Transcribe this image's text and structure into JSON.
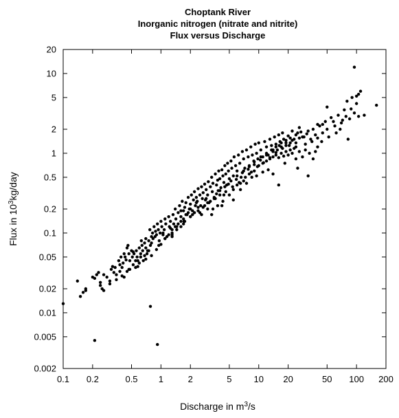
{
  "chart_data": {
    "type": "scatter",
    "title": [
      "Choptank River",
      "Inorganic nitrogen (nitrate and nitrite)",
      "Flux versus Discharge"
    ],
    "xlabel": {
      "prefix": "Discharge in m",
      "sup": "3",
      "suffix": "/s"
    },
    "ylabel": {
      "prefix": "Flux in 10",
      "sup": "3",
      "suffix": "kg/day"
    },
    "xscale": "log",
    "yscale": "log",
    "xlim": [
      0.1,
      200
    ],
    "ylim": [
      0.002,
      20
    ],
    "xticks": [
      0.1,
      0.2,
      0.5,
      1,
      2,
      5,
      10,
      20,
      50,
      100,
      200
    ],
    "xtick_labels": [
      "0.1",
      "0.2",
      "0.5",
      "1",
      "2",
      "5",
      "10",
      "20",
      "50",
      "100",
      "200"
    ],
    "yticks": [
      0.002,
      0.005,
      0.01,
      0.02,
      0.05,
      0.1,
      0.2,
      0.5,
      1,
      2,
      5,
      10,
      20
    ],
    "ytick_labels": [
      "0.002",
      "0.005",
      "0.01",
      "0.02",
      "0.05",
      "0.1",
      "0.2",
      "0.5",
      "1",
      "2",
      "5",
      "10",
      "20"
    ],
    "grid": false,
    "marker_color": "#000000",
    "points": [
      [
        0.1,
        0.013
      ],
      [
        0.14,
        0.025
      ],
      [
        0.15,
        0.016
      ],
      [
        0.16,
        0.018
      ],
      [
        0.17,
        0.02
      ],
      [
        0.17,
        0.019
      ],
      [
        0.2,
        0.028
      ],
      [
        0.21,
        0.027
      ],
      [
        0.22,
        0.03
      ],
      [
        0.23,
        0.032
      ],
      [
        0.24,
        0.024
      ],
      [
        0.24,
        0.022
      ],
      [
        0.25,
        0.02
      ],
      [
        0.26,
        0.03
      ],
      [
        0.28,
        0.028
      ],
      [
        0.3,
        0.025
      ],
      [
        0.31,
        0.035
      ],
      [
        0.32,
        0.038
      ],
      [
        0.33,
        0.032
      ],
      [
        0.34,
        0.037
      ],
      [
        0.35,
        0.03
      ],
      [
        0.37,
        0.045
      ],
      [
        0.38,
        0.04
      ],
      [
        0.38,
        0.033
      ],
      [
        0.39,
        0.05
      ],
      [
        0.4,
        0.037
      ],
      [
        0.41,
        0.042
      ],
      [
        0.42,
        0.055
      ],
      [
        0.43,
        0.05
      ],
      [
        0.44,
        0.046
      ],
      [
        0.45,
        0.065
      ],
      [
        0.46,
        0.07
      ],
      [
        0.47,
        0.055
      ],
      [
        0.48,
        0.045
      ],
      [
        0.48,
        0.035
      ],
      [
        0.5,
        0.06
      ],
      [
        0.51,
        0.05
      ],
      [
        0.52,
        0.04
      ],
      [
        0.53,
        0.055
      ],
      [
        0.55,
        0.045
      ],
      [
        0.56,
        0.06
      ],
      [
        0.57,
        0.05
      ],
      [
        0.58,
        0.038
      ],
      [
        0.6,
        0.065
      ],
      [
        0.62,
        0.055
      ],
      [
        0.63,
        0.08
      ],
      [
        0.64,
        0.07
      ],
      [
        0.65,
        0.06
      ],
      [
        0.66,
        0.045
      ],
      [
        0.68,
        0.075
      ],
      [
        0.7,
        0.085
      ],
      [
        0.7,
        0.065
      ],
      [
        0.72,
        0.055
      ],
      [
        0.73,
        0.06
      ],
      [
        0.75,
        0.08
      ],
      [
        0.77,
        0.11
      ],
      [
        0.78,
        0.07
      ],
      [
        0.8,
        0.09
      ],
      [
        0.82,
        0.1
      ],
      [
        0.83,
        0.085
      ],
      [
        0.85,
        0.12
      ],
      [
        0.87,
        0.09
      ],
      [
        0.88,
        0.105
      ],
      [
        0.9,
        0.095
      ],
      [
        0.92,
        0.13
      ],
      [
        0.94,
        0.11
      ],
      [
        0.96,
        0.08
      ],
      [
        0.98,
        0.1
      ],
      [
        1.0,
        0.14
      ],
      [
        1.02,
        0.12
      ],
      [
        1.05,
        0.095
      ],
      [
        1.08,
        0.11
      ],
      [
        1.1,
        0.15
      ],
      [
        1.12,
        0.13
      ],
      [
        1.15,
        0.09
      ],
      [
        1.2,
        0.16
      ],
      [
        1.22,
        0.12
      ],
      [
        1.25,
        0.14
      ],
      [
        1.3,
        0.11
      ],
      [
        1.33,
        0.17
      ],
      [
        1.35,
        0.13
      ],
      [
        1.4,
        0.2
      ],
      [
        1.42,
        0.15
      ],
      [
        1.45,
        0.12
      ],
      [
        1.5,
        0.18
      ],
      [
        1.55,
        0.22
      ],
      [
        1.6,
        0.16
      ],
      [
        1.65,
        0.25
      ],
      [
        1.7,
        0.19
      ],
      [
        1.72,
        0.14
      ],
      [
        1.75,
        0.21
      ],
      [
        1.8,
        0.24
      ],
      [
        1.85,
        0.17
      ],
      [
        1.9,
        0.28
      ],
      [
        1.95,
        0.2
      ],
      [
        2.0,
        0.23
      ],
      [
        2.05,
        0.3
      ],
      [
        2.1,
        0.19
      ],
      [
        2.15,
        0.26
      ],
      [
        2.2,
        0.33
      ],
      [
        2.25,
        0.22
      ],
      [
        2.3,
        0.28
      ],
      [
        2.35,
        0.25
      ],
      [
        2.4,
        0.36
      ],
      [
        2.5,
        0.3
      ],
      [
        2.55,
        0.22
      ],
      [
        2.6,
        0.38
      ],
      [
        2.65,
        0.27
      ],
      [
        2.7,
        0.32
      ],
      [
        2.8,
        0.41
      ],
      [
        2.85,
        0.26
      ],
      [
        2.9,
        0.35
      ],
      [
        3.0,
        0.3
      ],
      [
        3.05,
        0.44
      ],
      [
        3.1,
        0.24
      ],
      [
        3.2,
        0.38
      ],
      [
        3.3,
        0.5
      ],
      [
        3.35,
        0.33
      ],
      [
        3.4,
        0.42
      ],
      [
        3.5,
        0.28
      ],
      [
        3.6,
        0.55
      ],
      [
        3.7,
        0.4
      ],
      [
        3.8,
        0.46
      ],
      [
        3.85,
        0.34
      ],
      [
        3.9,
        0.6
      ],
      [
        4.0,
        0.48
      ],
      [
        4.1,
        0.37
      ],
      [
        4.2,
        0.62
      ],
      [
        4.3,
        0.52
      ],
      [
        4.4,
        0.43
      ],
      [
        4.5,
        0.7
      ],
      [
        4.6,
        0.55
      ],
      [
        4.7,
        0.4
      ],
      [
        4.8,
        0.75
      ],
      [
        4.9,
        0.6
      ],
      [
        5.0,
        0.48
      ],
      [
        5.2,
        0.8
      ],
      [
        5.3,
        0.65
      ],
      [
        5.5,
        0.52
      ],
      [
        5.6,
        0.9
      ],
      [
        5.8,
        0.7
      ],
      [
        6.0,
        0.6
      ],
      [
        6.2,
        0.95
      ],
      [
        6.4,
        0.75
      ],
      [
        6.6,
        0.5
      ],
      [
        6.8,
        1.05
      ],
      [
        7.0,
        0.85
      ],
      [
        7.2,
        0.65
      ],
      [
        7.5,
        1.1
      ],
      [
        7.8,
        0.9
      ],
      [
        8.0,
        0.7
      ],
      [
        8.3,
        1.2
      ],
      [
        8.6,
        0.95
      ],
      [
        8.9,
        0.8
      ],
      [
        9.2,
        1.3
      ],
      [
        9.5,
        1.0
      ],
      [
        9.8,
        0.85
      ],
      [
        10.0,
        1.35
      ],
      [
        10.5,
        1.1
      ],
      [
        11.0,
        0.9
      ],
      [
        11.5,
        1.4
      ],
      [
        12.0,
        1.2
      ],
      [
        12.5,
        0.95
      ],
      [
        13.0,
        1.5
      ],
      [
        13.5,
        1.25
      ],
      [
        14.0,
        1.05
      ],
      [
        14.5,
        1.6
      ],
      [
        15.0,
        1.3
      ],
      [
        15.5,
        1.1
      ],
      [
        16.0,
        1.7
      ],
      [
        16.5,
        1.4
      ],
      [
        17.0,
        1.2
      ],
      [
        17.5,
        1.8
      ],
      [
        18.0,
        1.5
      ],
      [
        19.0,
        1.25
      ],
      [
        20.0,
        1.65
      ],
      [
        21.0,
        1.35
      ],
      [
        22.0,
        1.9
      ],
      [
        23.0,
        1.5
      ],
      [
        24.0,
        1.2
      ],
      [
        25.0,
        1.8
      ],
      [
        26.0,
        2.1
      ],
      [
        28.0,
        1.6
      ],
      [
        30.0,
        1.3
      ],
      [
        32.0,
        1.9
      ],
      [
        34.0,
        1.5
      ],
      [
        36.0,
        2.0
      ],
      [
        38.0,
        1.7
      ],
      [
        40.0,
        1.2
      ],
      [
        42.0,
        2.2
      ],
      [
        45.0,
        1.8
      ],
      [
        48.0,
        2.5
      ],
      [
        50.0,
        2.0
      ],
      [
        55.0,
        2.8
      ],
      [
        60.0,
        2.2
      ],
      [
        65.0,
        3.0
      ],
      [
        70.0,
        2.4
      ],
      [
        75.0,
        3.5
      ],
      [
        80.0,
        4.5
      ],
      [
        85.0,
        2.7
      ],
      [
        90.0,
        5.0
      ],
      [
        95.0,
        3.2
      ],
      [
        100.0,
        4.2
      ],
      [
        110.0,
        6.0
      ],
      [
        120.0,
        3.0
      ],
      [
        0.26,
        0.019
      ],
      [
        0.3,
        0.023
      ],
      [
        0.35,
        0.026
      ],
      [
        0.4,
        0.029
      ],
      [
        0.45,
        0.033
      ],
      [
        0.55,
        0.037
      ],
      [
        0.6,
        0.042
      ],
      [
        0.7,
        0.047
      ],
      [
        0.8,
        0.052
      ],
      [
        0.9,
        0.062
      ],
      [
        1.0,
        0.072
      ],
      [
        1.1,
        0.085
      ],
      [
        1.2,
        0.095
      ],
      [
        1.3,
        0.1
      ],
      [
        1.4,
        0.12
      ],
      [
        1.5,
        0.13
      ],
      [
        1.6,
        0.14
      ],
      [
        1.7,
        0.15
      ],
      [
        1.8,
        0.17
      ],
      [
        1.9,
        0.18
      ],
      [
        2.0,
        0.2
      ],
      [
        2.2,
        0.18
      ],
      [
        2.4,
        0.21
      ],
      [
        2.6,
        0.17
      ],
      [
        2.8,
        0.22
      ],
      [
        3.0,
        0.2
      ],
      [
        3.2,
        0.25
      ],
      [
        3.4,
        0.2
      ],
      [
        3.6,
        0.27
      ],
      [
        3.8,
        0.22
      ],
      [
        4.0,
        0.3
      ],
      [
        4.3,
        0.25
      ],
      [
        4.6,
        0.33
      ],
      [
        5.0,
        0.3
      ],
      [
        5.5,
        0.35
      ],
      [
        6.0,
        0.4
      ],
      [
        6.5,
        0.42
      ],
      [
        7.0,
        0.45
      ],
      [
        8.0,
        0.55
      ],
      [
        9.0,
        0.6
      ],
      [
        10.0,
        0.7
      ],
      [
        11.0,
        0.75
      ],
      [
        12.0,
        0.8
      ],
      [
        13.0,
        0.85
      ],
      [
        14.0,
        0.9
      ],
      [
        15.0,
        0.95
      ],
      [
        16.0,
        0.88
      ],
      [
        17.0,
        1.0
      ],
      [
        18.0,
        0.92
      ],
      [
        19.0,
        1.05
      ],
      [
        20.0,
        0.95
      ],
      [
        21.0,
        1.1
      ],
      [
        22.0,
        1.0
      ],
      [
        23.0,
        1.15
      ],
      [
        24.0,
        0.85
      ],
      [
        26.0,
        1.05
      ],
      [
        28.0,
        0.9
      ],
      [
        30.0,
        1.1
      ],
      [
        33.0,
        1.0
      ],
      [
        36.0,
        0.85
      ],
      [
        38.0,
        1.05
      ],
      [
        14.0,
        0.55
      ],
      [
        16.0,
        0.4
      ],
      [
        18.5,
        0.75
      ],
      [
        25.0,
        0.65
      ],
      [
        32.0,
        0.52
      ],
      [
        6.5,
        0.35
      ],
      [
        7.5,
        0.42
      ],
      [
        8.5,
        0.5
      ],
      [
        9.5,
        0.52
      ],
      [
        11.0,
        0.58
      ],
      [
        12.5,
        0.62
      ],
      [
        3.3,
        0.17
      ],
      [
        4.2,
        0.22
      ],
      [
        5.5,
        0.26
      ],
      [
        2.0,
        0.16
      ],
      [
        2.5,
        0.18
      ],
      [
        1.7,
        0.13
      ],
      [
        1.3,
        0.09
      ],
      [
        0.95,
        0.07
      ],
      [
        0.75,
        0.06
      ],
      [
        0.58,
        0.045
      ],
      [
        0.47,
        0.035
      ],
      [
        0.42,
        0.028
      ],
      [
        0.52,
        0.058
      ],
      [
        0.62,
        0.05
      ],
      [
        0.68,
        0.052
      ],
      [
        0.8,
        0.075
      ],
      [
        1.05,
        0.1
      ],
      [
        1.25,
        0.115
      ],
      [
        1.6,
        0.19
      ],
      [
        2.3,
        0.24
      ],
      [
        2.9,
        0.27
      ],
      [
        3.7,
        0.31
      ],
      [
        4.5,
        0.38
      ],
      [
        5.2,
        0.45
      ],
      [
        6.0,
        0.52
      ],
      [
        7.0,
        0.6
      ],
      [
        8.0,
        0.68
      ],
      [
        9.0,
        0.78
      ],
      [
        10.5,
        0.9
      ],
      [
        12.0,
        1.0
      ],
      [
        13.5,
        1.1
      ],
      [
        15.0,
        1.2
      ],
      [
        17.0,
        1.35
      ],
      [
        19.0,
        1.45
      ],
      [
        21.0,
        1.55
      ],
      [
        24.0,
        1.7
      ],
      [
        27.0,
        1.85
      ],
      [
        29.0,
        1.6
      ],
      [
        31.0,
        1.75
      ],
      [
        35.0,
        1.4
      ],
      [
        40.0,
        1.55
      ],
      [
        44.0,
        1.4
      ],
      [
        52.0,
        1.6
      ],
      [
        58.0,
        2.5
      ],
      [
        62.0,
        1.8
      ],
      [
        68.0,
        2.0
      ],
      [
        72.0,
        2.6
      ],
      [
        78.0,
        2.9
      ],
      [
        82.0,
        1.5
      ],
      [
        88.0,
        3.6
      ],
      [
        105.0,
        2.9
      ],
      [
        1.1,
        0.085
      ],
      [
        1.3,
        0.095
      ],
      [
        1.45,
        0.11
      ],
      [
        1.6,
        0.12
      ],
      [
        1.75,
        0.14
      ],
      [
        2.1,
        0.17
      ],
      [
        2.4,
        0.19
      ],
      [
        2.7,
        0.21
      ],
      [
        3.0,
        0.24
      ],
      [
        3.5,
        0.27
      ],
      [
        4.0,
        0.34
      ],
      [
        4.4,
        0.3
      ],
      [
        4.9,
        0.41
      ],
      [
        5.4,
        0.38
      ],
      [
        5.9,
        0.47
      ],
      [
        6.3,
        0.43
      ],
      [
        6.8,
        0.57
      ],
      [
        7.3,
        0.5
      ],
      [
        7.8,
        0.63
      ],
      [
        8.4,
        0.58
      ],
      [
        9.0,
        0.72
      ],
      [
        9.7,
        0.68
      ],
      [
        10.4,
        0.82
      ],
      [
        11.2,
        0.76
      ],
      [
        12.0,
        0.95
      ],
      [
        13.0,
        0.88
      ],
      [
        14.0,
        1.1
      ],
      [
        15.0,
        1.02
      ],
      [
        16.2,
        1.25
      ],
      [
        17.5,
        1.15
      ],
      [
        19.0,
        1.35
      ],
      [
        20.5,
        1.25
      ],
      [
        22.0,
        1.45
      ],
      [
        24.0,
        1.35
      ],
      [
        26.0,
        1.55
      ],
      [
        0.21,
        0.0045
      ],
      [
        0.78,
        0.012
      ],
      [
        0.92,
        0.004
      ],
      [
        95.0,
        12.0
      ],
      [
        100.0,
        5.2
      ],
      [
        105.0,
        5.5
      ],
      [
        160.0,
        4.0
      ],
      [
        40.0,
        2.3
      ],
      [
        45.0,
        2.3
      ],
      [
        50.0,
        3.8
      ]
    ]
  }
}
